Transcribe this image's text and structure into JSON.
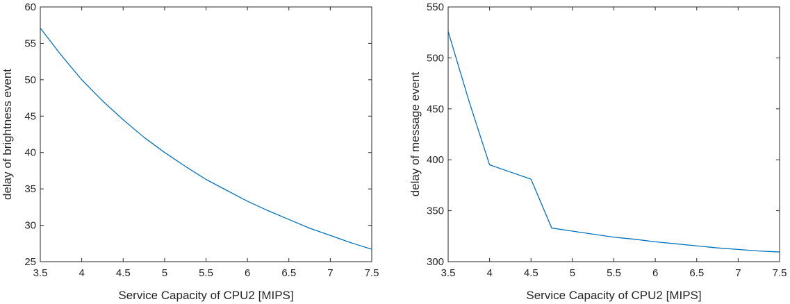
{
  "chart_data": [
    {
      "type": "line",
      "title": "",
      "xlabel": "Service Capacity of CPU2 [MIPS]",
      "ylabel": "delay of brightness event",
      "xlim": [
        3.5,
        7.5
      ],
      "ylim": [
        25,
        60
      ],
      "xticks": [
        3.5,
        4,
        4.5,
        5,
        5.5,
        6,
        6.5,
        7,
        7.5
      ],
      "yticks": [
        25,
        30,
        35,
        40,
        45,
        50,
        55,
        60
      ],
      "xtick_labels": [
        "3.5",
        "4",
        "4.5",
        "5",
        "5.5",
        "6",
        "6.5",
        "7",
        "7.5"
      ],
      "ytick_labels": [
        "25",
        "30",
        "35",
        "40",
        "45",
        "50",
        "55",
        "60"
      ],
      "grid": false,
      "series": [
        {
          "color": "#0072BD",
          "x": [
            3.5,
            3.75,
            4,
            4.25,
            4.5,
            4.75,
            5,
            5.25,
            5.5,
            5.75,
            6,
            6.25,
            6.5,
            6.75,
            7,
            7.25,
            7.5
          ],
          "y": [
            57.1,
            53.4,
            50.0,
            47.1,
            44.5,
            42.1,
            40.0,
            38.1,
            36.3,
            34.8,
            33.3,
            32.0,
            30.8,
            29.6,
            28.6,
            27.6,
            26.7
          ]
        }
      ]
    },
    {
      "type": "line",
      "title": "",
      "xlabel": "Service Capacity of CPU2 [MIPS]",
      "ylabel": "delay of message event",
      "xlim": [
        3.5,
        7.5
      ],
      "ylim": [
        300,
        550
      ],
      "xticks": [
        3.5,
        4,
        4.5,
        5,
        5.5,
        6,
        6.5,
        7,
        7.5
      ],
      "yticks": [
        300,
        350,
        400,
        450,
        500,
        550
      ],
      "xtick_labels": [
        "3.5",
        "4",
        "4.5",
        "5",
        "5.5",
        "6",
        "6.5",
        "7",
        "7.5"
      ],
      "ytick_labels": [
        "300",
        "350",
        "400",
        "450",
        "500",
        "550"
      ],
      "grid": false,
      "series": [
        {
          "color": "#0072BD",
          "x": [
            3.5,
            3.75,
            4,
            4.25,
            4.5,
            4.75,
            5,
            5.25,
            5.5,
            5.75,
            6,
            6.25,
            6.5,
            6.75,
            7,
            7.25,
            7.5
          ],
          "y": [
            526,
            458,
            395,
            388,
            381,
            333,
            330,
            327,
            324,
            322,
            319.5,
            317.5,
            315.5,
            313.5,
            312,
            310.5,
            309.5
          ]
        }
      ]
    }
  ]
}
